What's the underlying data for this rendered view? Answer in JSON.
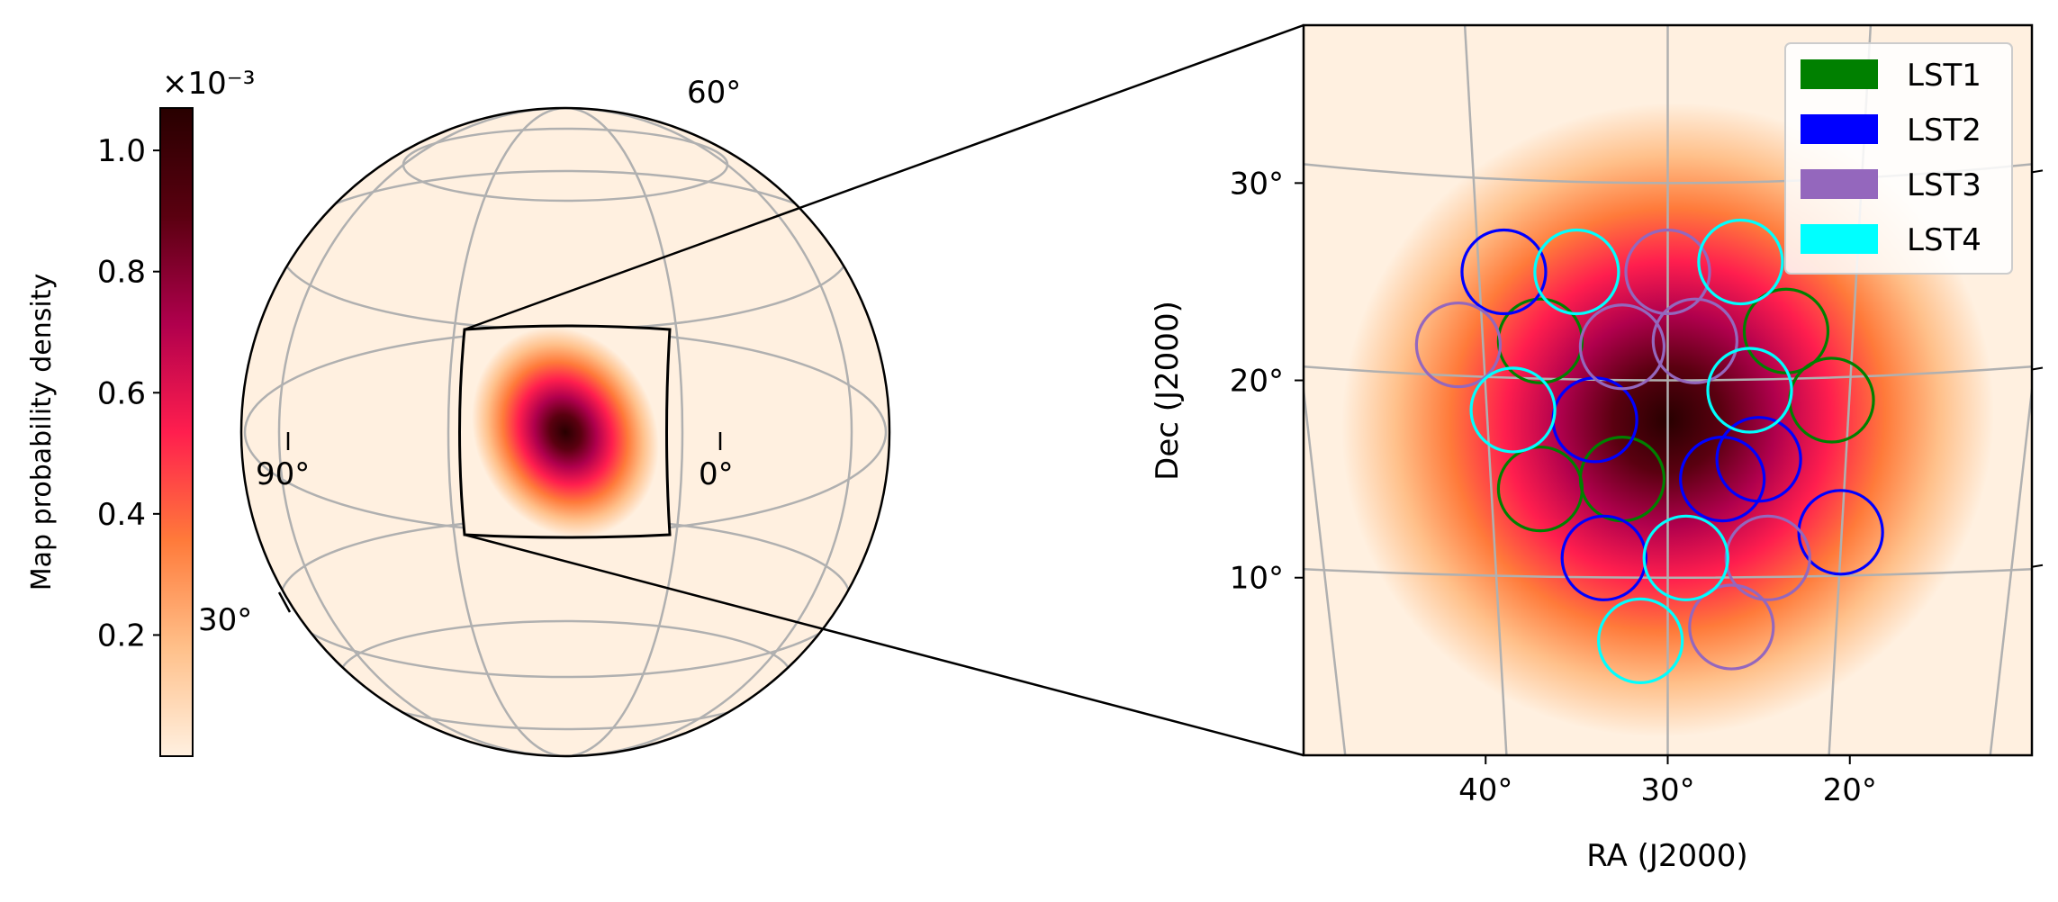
{
  "colors": {
    "lst1": "#008000",
    "lst2": "#0000ff",
    "lst3": "#9467bd",
    "lst4": "#00ffff",
    "grid": "#b0b0b0",
    "background": "#fff0e0",
    "colormap": [
      "#fff0e0",
      "#ffc08a",
      "#ff7a3a",
      "#ff1e4e",
      "#b0004d",
      "#5a0010",
      "#280000"
    ]
  },
  "chart_data": [
    {
      "type": "heatmap",
      "subtype": "colorbar",
      "label": "Map probability density",
      "multiplier": "×10⁻³",
      "range": [
        0,
        1.07
      ],
      "ticks": [
        0.2,
        0.4,
        0.6,
        0.8,
        1.0
      ],
      "tick_labels": [
        "0.2",
        "0.4",
        "0.6",
        "0.8",
        "1.0"
      ]
    },
    {
      "type": "heatmap",
      "subtype": "globe",
      "projection": "orthographic",
      "lon_labels": [
        "0°",
        "90°"
      ],
      "lat_labels": [
        "30°",
        "60°"
      ],
      "peak": {
        "ra": 30,
        "dec": 18
      },
      "inset_box": {
        "ra_range": [
          12,
          48
        ],
        "dec_range": [
          2,
          36
        ]
      }
    },
    {
      "type": "scatter",
      "subtype": "zoomed skymap with telescope pointings",
      "xlabel": "RA (J2000)",
      "ylabel": "Dec (J2000)",
      "xticks": [
        40,
        30,
        20
      ],
      "xtick_labels": [
        "40°",
        "30°",
        "20°"
      ],
      "yticks": [
        10,
        20,
        30
      ],
      "ytick_labels": [
        "10°",
        "20°",
        "30°"
      ],
      "xlim": [
        50,
        10
      ],
      "ylim": [
        1,
        38
      ],
      "grid": true,
      "legend_position": "top-right",
      "peak": {
        "ra": 30,
        "dec": 18
      },
      "fov_radius_deg": 2.3,
      "series": [
        {
          "name": "LST1",
          "points": [
            [
              37,
              22
            ],
            [
              23.5,
              22.5
            ],
            [
              21,
              19
            ],
            [
              37,
              14.5
            ],
            [
              32.5,
              15
            ]
          ]
        },
        {
          "name": "LST2",
          "points": [
            [
              39,
              25.5
            ],
            [
              34,
              18
            ],
            [
              27,
              15
            ],
            [
              25,
              16
            ],
            [
              20.5,
              12.3
            ],
            [
              33.5,
              11
            ]
          ]
        },
        {
          "name": "LST3",
          "points": [
            [
              41.5,
              21.8
            ],
            [
              30,
              25.5
            ],
            [
              32.5,
              21.7
            ],
            [
              28.5,
              22
            ],
            [
              24.5,
              11
            ],
            [
              26.5,
              7.5
            ]
          ]
        },
        {
          "name": "LST4",
          "points": [
            [
              35,
              25.5
            ],
            [
              26,
              26
            ],
            [
              38.5,
              18.5
            ],
            [
              25.5,
              19.5
            ],
            [
              29,
              11
            ],
            [
              31.5,
              6.8
            ]
          ]
        }
      ]
    }
  ]
}
